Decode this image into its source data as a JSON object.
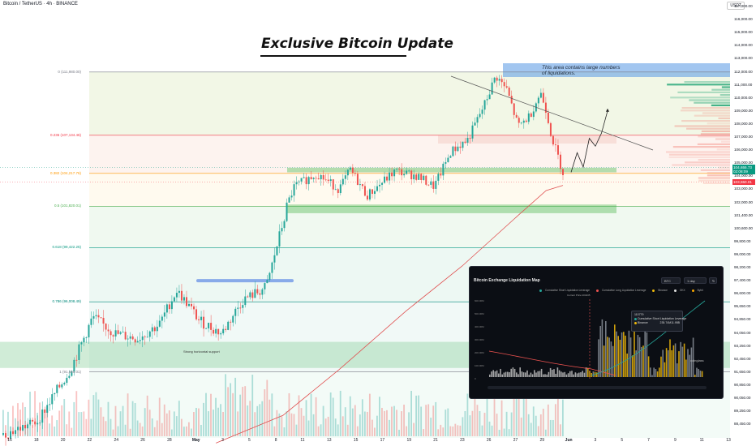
{
  "header": {
    "symbol": "Bitcoin / TetherUS · 4h · BINANCE",
    "currency": "USDT"
  },
  "headline": "Exclusive Bitcoin Update",
  "liquidation_note": "This area contains large numbers\nof liquidations.",
  "support_label": "Strong horizontal support",
  "fib_levels": [
    {
      "label": "0 (111,980.00)",
      "price": 111980,
      "color": "#787b86"
    },
    {
      "label": "0.236 (107,134.46)",
      "price": 107134.46,
      "color": "#f23645"
    },
    {
      "label": "0.382 (104,217.76)",
      "price": 104217.76,
      "color": "#ff9800"
    },
    {
      "label": "0.5 (101,820.01)",
      "price": 101820.01,
      "color": "#4caf50"
    },
    {
      "label": "0.618 (99,422.25)",
      "price": 99422.25,
      "color": "#089981"
    },
    {
      "label": "0.786 (96,008.49)",
      "price": 96008.49,
      "color": "#00897b"
    },
    {
      "label": "1 (91,660.01)",
      "price": 91660.01,
      "color": "#787b86"
    }
  ],
  "price_badges": [
    {
      "text": "104,655.73",
      "sub": "02:08:09",
      "price": 104655.73,
      "color": "#089981"
    },
    {
      "text": "103,550.01",
      "price": 103550.01,
      "color": "#f23645"
    }
  ],
  "chart_data": {
    "type": "candlestick",
    "title": "Bitcoin / TetherUS · 4h · BINANCE",
    "y_axis_ticks": [
      117000,
      116000,
      115000,
      114000,
      113000,
      112000,
      111000,
      110000,
      109000,
      108000,
      107000,
      106000,
      105000,
      104000,
      103000,
      102000,
      101400,
      100600,
      99800,
      99000,
      98200,
      97400,
      96600,
      95650,
      94850,
      94050,
      93250,
      92450,
      91650,
      90850,
      90050,
      89250,
      88450
    ],
    "y_axis_labels": [
      "117,000.00",
      "116,000.00",
      "115,000.00",
      "114,000.00",
      "113,000.00",
      "112,000.00",
      "111,000.00",
      "110,000.00",
      "109,000.00",
      "108,000.00",
      "107,000.00",
      "106,000.00",
      "105,000.00",
      "104,000.00",
      "103,000.00",
      "102,000.00",
      "101,400.00",
      "100,600.00",
      "99,800.00",
      "99,000.00",
      "98,200.00",
      "97,400.00",
      "96,600.00",
      "95,650.00",
      "94,850.00",
      "94,050.00",
      "93,250.00",
      "92,450.00",
      "91,650.00",
      "90,850.00",
      "90,050.00",
      "89,250.00",
      "88,450.00"
    ],
    "x_axis_labels": [
      {
        "label": "16",
        "bold": false
      },
      {
        "label": "18",
        "bold": false
      },
      {
        "label": "20",
        "bold": false
      },
      {
        "label": "22",
        "bold": false
      },
      {
        "label": "24",
        "bold": false
      },
      {
        "label": "26",
        "bold": false
      },
      {
        "label": "28",
        "bold": false
      },
      {
        "label": "May",
        "bold": true
      },
      {
        "label": "3",
        "bold": false
      },
      {
        "label": "5",
        "bold": false
      },
      {
        "label": "8",
        "bold": false
      },
      {
        "label": "11",
        "bold": false
      },
      {
        "label": "13",
        "bold": false
      },
      {
        "label": "15",
        "bold": false
      },
      {
        "label": "17",
        "bold": false
      },
      {
        "label": "19",
        "bold": false
      },
      {
        "label": "21",
        "bold": false
      },
      {
        "label": "23",
        "bold": false
      },
      {
        "label": "26",
        "bold": false
      },
      {
        "label": "27",
        "bold": false
      },
      {
        "label": "29",
        "bold": false
      },
      {
        "label": "Jun",
        "bold": true
      },
      {
        "label": "3",
        "bold": false
      },
      {
        "label": "5",
        "bold": false
      },
      {
        "label": "7",
        "bold": false
      },
      {
        "label": "9",
        "bold": false
      },
      {
        "label": "11",
        "bold": false
      },
      {
        "label": "13",
        "bold": false
      }
    ],
    "trend_waypoints": [
      [
        0,
        87800
      ],
      [
        0.06,
        88600
      ],
      [
        0.12,
        91800
      ],
      [
        0.16,
        95000
      ],
      [
        0.2,
        94000
      ],
      [
        0.24,
        93700
      ],
      [
        0.28,
        94600
      ],
      [
        0.31,
        96800
      ],
      [
        0.35,
        94800
      ],
      [
        0.39,
        94000
      ],
      [
        0.43,
        96200
      ],
      [
        0.47,
        97000
      ],
      [
        0.5,
        101000
      ],
      [
        0.52,
        103200
      ],
      [
        0.56,
        104200
      ],
      [
        0.6,
        103000
      ],
      [
        0.62,
        104500
      ],
      [
        0.65,
        102500
      ],
      [
        0.7,
        104400
      ],
      [
        0.74,
        104000
      ],
      [
        0.77,
        103200
      ],
      [
        0.8,
        105900
      ],
      [
        0.83,
        106800
      ],
      [
        0.86,
        109500
      ],
      [
        0.88,
        111700
      ],
      [
        0.9,
        110600
      ],
      [
        0.92,
        107800
      ],
      [
        0.94,
        108600
      ],
      [
        0.96,
        110400
      ],
      [
        0.97,
        109100
      ],
      [
        0.98,
        107000
      ],
      [
        1.0,
        104300
      ]
    ],
    "moving_average": [
      [
        0.38,
        87300
      ],
      [
        0.5,
        89000
      ],
      [
        0.6,
        91800
      ],
      [
        0.72,
        95400
      ],
      [
        0.82,
        98300
      ],
      [
        0.92,
        101400
      ],
      [
        0.97,
        102900
      ],
      [
        1.0,
        103300
      ]
    ],
    "projection_path": [
      [
        104300
      ],
      [
        105800
      ],
      [
        104700
      ],
      [
        106900
      ],
      [
        106300
      ],
      [
        107300
      ],
      [
        109000
      ]
    ],
    "zones": [
      {
        "name": "resistance-band",
        "from": 106500,
        "to": 107150
      },
      {
        "name": "support-band",
        "from": 104300,
        "to": 104650
      },
      {
        "name": "fib-0.5-band",
        "from": 101500,
        "to": 101900
      },
      {
        "name": "horizontal-support",
        "from": 91900,
        "to": 93500
      },
      {
        "name": "prior-resistance",
        "from": 97300,
        "to": 97500
      }
    ]
  },
  "inset": {
    "title": "Bitcoin Exchange Liquidation Map",
    "exchange_select": "BTC",
    "period_select": "1 day",
    "legend": [
      {
        "label": "Cumulative Short Liquidation Leverage",
        "color": "#26a69a"
      },
      {
        "label": "Cumulative Long Liquidation Leverage",
        "color": "#ef5350"
      },
      {
        "label": "Binance",
        "color": "#f0b90b"
      },
      {
        "label": "OKX",
        "color": "#e0e0e0"
      },
      {
        "label": "Bybit",
        "color": "#f7a600"
      }
    ],
    "current_price": "Current Price:104435",
    "tooltip": {
      "title": "110779",
      "rows": [
        {
          "label": "Cumulative Short Liquidation Leverage",
          "value": "11.95B"
        },
        {
          "label": "Binance",
          "value": "235.74M"
        }
      ]
    },
    "y_labels": [
      "600.00M",
      "500.00M",
      "400.00M",
      "300.00M",
      "200.00M",
      "100.00M",
      "0"
    ],
    "watermark": "coinglass"
  }
}
